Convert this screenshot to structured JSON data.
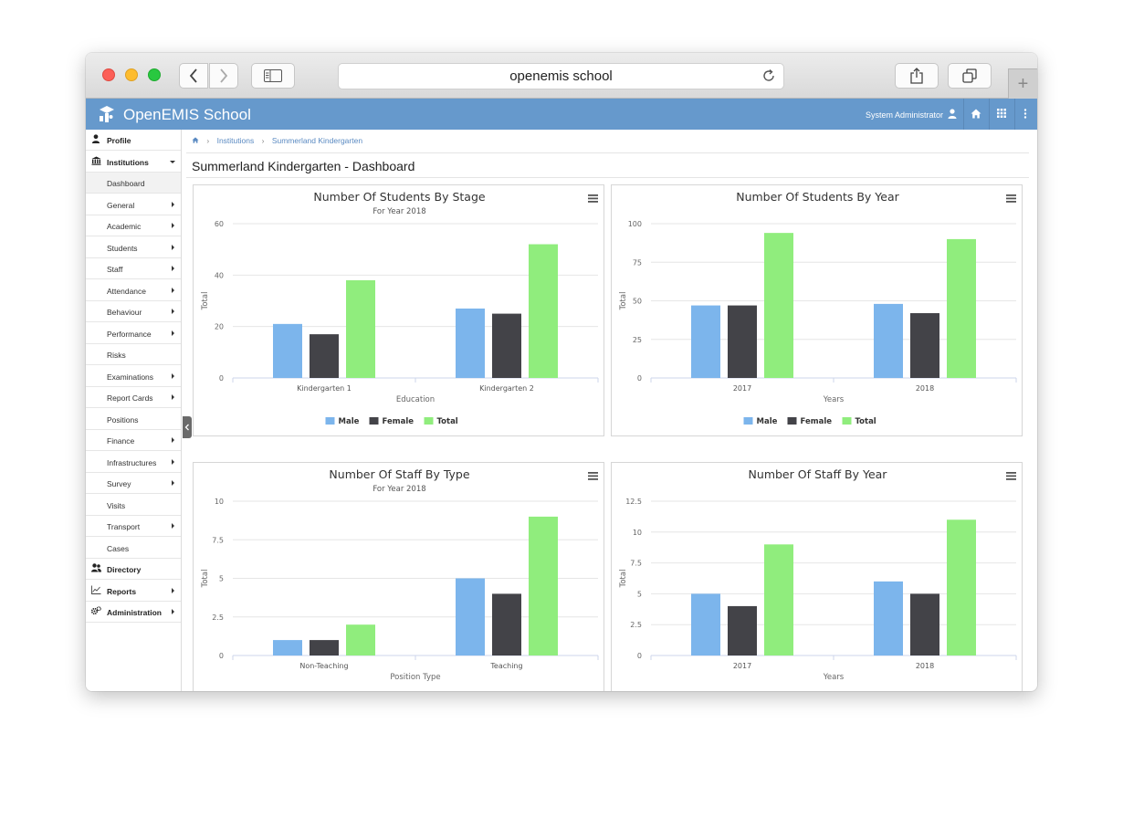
{
  "browser": {
    "address": "openemis school"
  },
  "app": {
    "title": "OpenEMIS School",
    "user": "System Administrator"
  },
  "sidebar": {
    "items": [
      {
        "label": "Profile",
        "top": true,
        "icon": "user-icon"
      },
      {
        "label": "Institutions",
        "top": true,
        "icon": "institution-icon",
        "expanded": true
      },
      {
        "label": "Dashboard",
        "active": true
      },
      {
        "label": "General",
        "arrow": true
      },
      {
        "label": "Academic",
        "arrow": true
      },
      {
        "label": "Students",
        "arrow": true
      },
      {
        "label": "Staff",
        "arrow": true
      },
      {
        "label": "Attendance",
        "arrow": true
      },
      {
        "label": "Behaviour",
        "arrow": true
      },
      {
        "label": "Performance",
        "arrow": true
      },
      {
        "label": "Risks"
      },
      {
        "label": "Examinations",
        "arrow": true
      },
      {
        "label": "Report Cards",
        "arrow": true
      },
      {
        "label": "Positions"
      },
      {
        "label": "Finance",
        "arrow": true
      },
      {
        "label": "Infrastructures",
        "arrow": true
      },
      {
        "label": "Survey",
        "arrow": true
      },
      {
        "label": "Visits"
      },
      {
        "label": "Transport",
        "arrow": true
      },
      {
        "label": "Cases"
      },
      {
        "label": "Directory",
        "top": true,
        "icon": "users-icon"
      },
      {
        "label": "Reports",
        "top": true,
        "icon": "line-chart-icon",
        "arrow": true
      },
      {
        "label": "Administration",
        "top": true,
        "icon": "cogs-icon",
        "arrow": true
      }
    ]
  },
  "breadcrumb": {
    "items": [
      "Institutions",
      "Summerland Kindergarten"
    ]
  },
  "page": {
    "title": "Summerland Kindergarten - Dashboard"
  },
  "colors": {
    "header": "#6699cc",
    "male": "#7cb5ec",
    "female": "#434348",
    "total": "#90ed7d"
  },
  "chart_data": [
    {
      "type": "bar",
      "title": "Number Of Students By Stage",
      "subtitle": "For Year 2018",
      "xlabel": "Education",
      "ylabel": "Total",
      "categories": [
        "Kindergarten 1",
        "Kindergarten 2"
      ],
      "ylim": [
        0,
        60
      ],
      "yticks": [
        "0",
        "20",
        "40",
        "60"
      ],
      "ytick_values": [
        0,
        20,
        40,
        60
      ],
      "legend": "bottom",
      "series": [
        {
          "name": "Male",
          "values": [
            21,
            27
          ]
        },
        {
          "name": "Female",
          "values": [
            17,
            25
          ]
        },
        {
          "name": "Total",
          "values": [
            38,
            52
          ]
        }
      ]
    },
    {
      "type": "bar",
      "title": "Number Of Students By Year",
      "subtitle": "",
      "xlabel": "Years",
      "ylabel": "Total",
      "categories": [
        "2017",
        "2018"
      ],
      "ylim": [
        0,
        100
      ],
      "yticks": [
        "0",
        "25",
        "50",
        "75",
        "100"
      ],
      "ytick_values": [
        0,
        25,
        50,
        75,
        100
      ],
      "legend": "bottom",
      "series": [
        {
          "name": "Male",
          "values": [
            47,
            48
          ]
        },
        {
          "name": "Female",
          "values": [
            47,
            42
          ]
        },
        {
          "name": "Total",
          "values": [
            94,
            90
          ]
        }
      ]
    },
    {
      "type": "bar",
      "title": "Number Of Staff By Type",
      "subtitle": "For Year 2018",
      "xlabel": "Position Type",
      "ylabel": "Total",
      "categories": [
        "Non-Teaching",
        "Teaching"
      ],
      "ylim": [
        0,
        10
      ],
      "yticks": [
        "0",
        "2.5",
        "5",
        "7.5",
        "10"
      ],
      "ytick_values": [
        0,
        2.5,
        5,
        7.5,
        10
      ],
      "legend": "bottom",
      "series": [
        {
          "name": "Male",
          "values": [
            1,
            5
          ]
        },
        {
          "name": "Female",
          "values": [
            1,
            4
          ]
        },
        {
          "name": "Total",
          "values": [
            2,
            9
          ]
        }
      ]
    },
    {
      "type": "bar",
      "title": "Number Of Staff By Year",
      "subtitle": "",
      "xlabel": "Years",
      "ylabel": "Total",
      "categories": [
        "2017",
        "2018"
      ],
      "ylim": [
        0,
        12.5
      ],
      "yticks": [
        "0",
        "2.5",
        "5",
        "7.5",
        "10",
        "12.5"
      ],
      "ytick_values": [
        0,
        2.5,
        5,
        7.5,
        10,
        12.5
      ],
      "legend": "bottom",
      "series": [
        {
          "name": "Male",
          "values": [
            5,
            6
          ]
        },
        {
          "name": "Female",
          "values": [
            4,
            5
          ]
        },
        {
          "name": "Total",
          "values": [
            9,
            11
          ]
        }
      ]
    }
  ]
}
